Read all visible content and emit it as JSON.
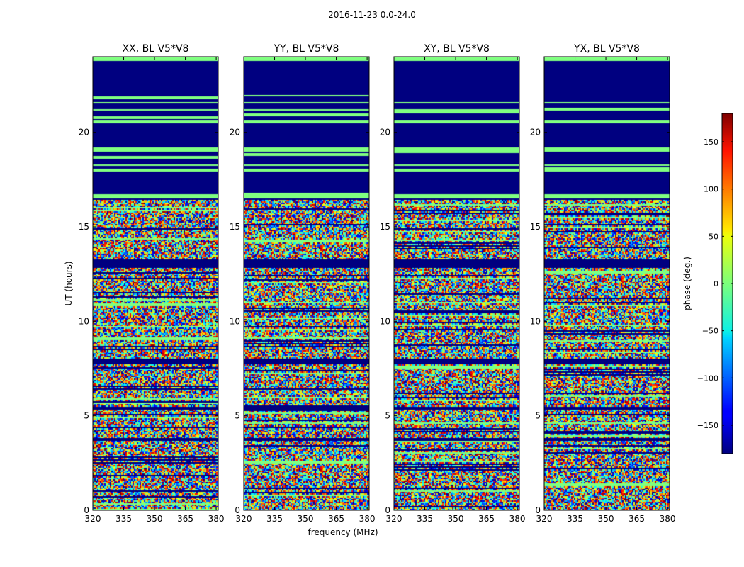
{
  "figure": {
    "suptitle": "2016-11-23 0.0-24.0",
    "ylabel": "UT (hours)",
    "xlabel": "frequency (MHz)"
  },
  "chart_data": {
    "type": "heatmap",
    "colormap": "jet",
    "panels": [
      {
        "title": "XX, BL V5*V8"
      },
      {
        "title": "YY, BL V5*V8"
      },
      {
        "title": "XY, BL V5*V8"
      },
      {
        "title": "YX, BL V5*V8"
      }
    ],
    "xlim": [
      320,
      381
    ],
    "ylim": [
      0,
      24
    ],
    "xticks": [
      320,
      335,
      350,
      365,
      380
    ],
    "yticks": [
      0,
      5,
      10,
      15,
      20
    ],
    "colorbar": {
      "label": "phase (deg.)",
      "range": [
        -180,
        180
      ],
      "ticks": [
        150,
        100,
        50,
        0,
        -50,
        -100,
        -150
      ],
      "tick_labels": [
        "150",
        "100",
        "50",
        "0",
        "−50",
        "−100",
        "−150"
      ]
    },
    "flagged_value_deg": -180,
    "zero_phase_bands_hours": [
      [
        23.8,
        24.0
      ],
      [
        21.95,
        22.0
      ],
      [
        21.5,
        21.6
      ],
      [
        21.15,
        21.25
      ],
      [
        20.5,
        20.6
      ],
      [
        19.0,
        19.2
      ],
      [
        18.2,
        18.3
      ],
      [
        17.95,
        18.1
      ],
      [
        16.5,
        16.7
      ]
    ],
    "flagged_bands_hours": [
      [
        22.0,
        23.7
      ],
      [
        19.3,
        20.4
      ],
      [
        16.8,
        17.9
      ],
      [
        12.8,
        13.3
      ],
      [
        7.7,
        8.0
      ],
      [
        5.3,
        5.5
      ],
      [
        3.7,
        3.85
      ]
    ],
    "noisy_ranges_hours": [
      [
        0,
        3.7
      ],
      [
        3.85,
        12.8
      ],
      [
        13.3,
        16.4
      ]
    ]
  }
}
